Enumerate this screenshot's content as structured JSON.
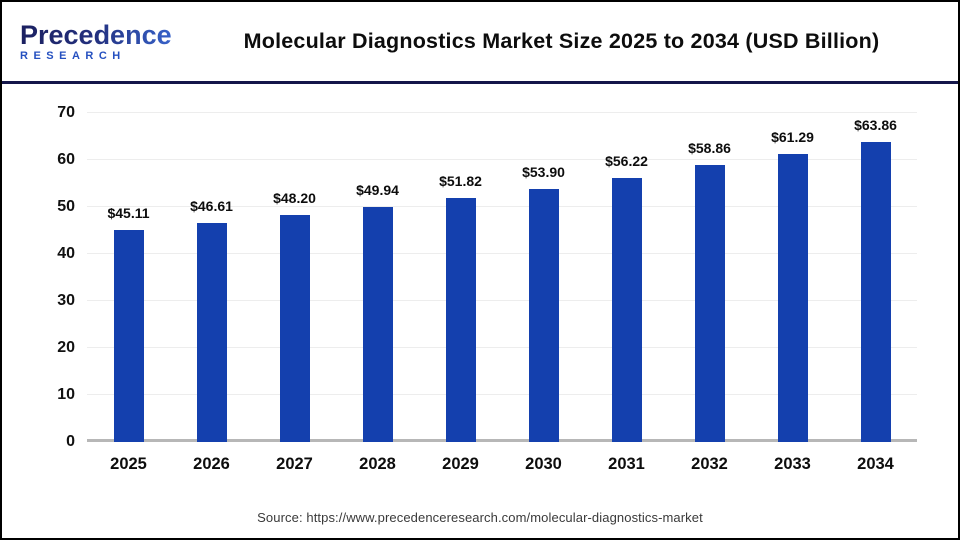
{
  "header": {
    "logo_line1": "Precedence",
    "logo_line2": "RESEARCH",
    "title": "Molecular Diagnostics Market Size 2025 to 2034 (USD Billion)"
  },
  "chart_data": {
    "type": "bar",
    "title": "Molecular Diagnostics Market Size 2025 to 2034 (USD Billion)",
    "categories": [
      "2025",
      "2026",
      "2027",
      "2028",
      "2029",
      "2030",
      "2031",
      "2032",
      "2033",
      "2034"
    ],
    "values": [
      45.11,
      46.61,
      48.2,
      49.94,
      51.82,
      53.9,
      56.22,
      58.86,
      61.29,
      63.86
    ],
    "value_labels": [
      "$45.11",
      "$46.61",
      "$48.20",
      "$49.94",
      "$51.82",
      "$53.90",
      "$56.22",
      "$58.86",
      "$61.29",
      "$63.86"
    ],
    "xlabel": "",
    "ylabel": "",
    "ylim": [
      0,
      70
    ],
    "yticks": [
      0,
      10,
      20,
      30,
      40,
      50,
      60,
      70
    ],
    "grid": true,
    "legend": false,
    "bar_color": "#1440ae"
  },
  "footer": {
    "source": "Source: https://www.precedenceresearch.com/molecular-diagnostics-market"
  },
  "colors": {
    "bar": "#1440ae",
    "header_divider": "#14164a",
    "axis_line": "#b7b7b7",
    "gridline": "#ededed",
    "logo_navy": "#1b2060",
    "logo_blue": "#3a6ad6"
  }
}
